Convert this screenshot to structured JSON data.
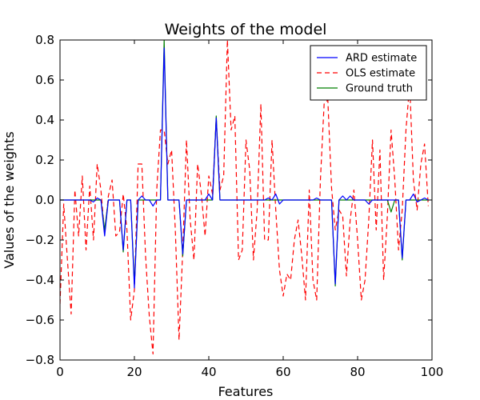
{
  "chart_data": {
    "type": "line",
    "title": "Weights of the model",
    "xlabel": "Features",
    "ylabel": "Values of the weights",
    "xlim": [
      0,
      100
    ],
    "ylim": [
      -0.8,
      0.8
    ],
    "xticks": [
      0,
      20,
      40,
      60,
      80,
      100
    ],
    "xtick_labels": [
      "0",
      "20",
      "40",
      "60",
      "80",
      "100"
    ],
    "yticks": [
      -0.8,
      -0.6,
      -0.4,
      -0.2,
      0.0,
      0.2,
      0.4,
      0.6,
      0.8
    ],
    "ytick_labels": [
      "−0.8",
      "−0.6",
      "−0.4",
      "−0.2",
      "0.0",
      "0.2",
      "0.4",
      "0.6",
      "0.8"
    ],
    "grid": false,
    "legend_position": "top-right",
    "series": [
      {
        "name": "ARD estimate",
        "color": "#0000ff",
        "style": "solid",
        "x": [
          0,
          1,
          2,
          3,
          4,
          5,
          6,
          7,
          8,
          9,
          10,
          11,
          12,
          13,
          14,
          15,
          16,
          17,
          18,
          19,
          20,
          21,
          22,
          23,
          24,
          25,
          26,
          27,
          28,
          29,
          30,
          31,
          32,
          33,
          34,
          35,
          36,
          37,
          38,
          39,
          40,
          41,
          42,
          43,
          44,
          45,
          46,
          47,
          48,
          49,
          50,
          51,
          52,
          53,
          54,
          55,
          56,
          57,
          58,
          59,
          60,
          61,
          62,
          63,
          64,
          65,
          66,
          67,
          68,
          69,
          70,
          71,
          72,
          73,
          74,
          75,
          76,
          77,
          78,
          79,
          80,
          81,
          82,
          83,
          84,
          85,
          86,
          87,
          88,
          89,
          90,
          91,
          92,
          93,
          94,
          95,
          96,
          97,
          98,
          99
        ],
        "y": [
          0,
          0,
          0,
          0,
          0,
          0,
          0,
          0,
          0,
          -0.01,
          0.01,
          0,
          -0.18,
          0,
          0,
          0,
          0,
          -0.25,
          0,
          0,
          -0.44,
          0,
          0.02,
          0,
          0,
          -0.03,
          0,
          0,
          0.76,
          0,
          0,
          0,
          0,
          -0.27,
          0,
          0,
          0,
          0,
          0,
          0,
          0.03,
          0,
          0.41,
          0,
          0,
          0,
          0,
          0,
          0,
          0,
          0,
          0,
          0,
          0,
          0,
          0,
          0.01,
          0,
          0.03,
          -0.02,
          0,
          0,
          0,
          0,
          0,
          0,
          0,
          0,
          0,
          0.01,
          0,
          0,
          0,
          0,
          -0.42,
          0,
          0.02,
          0,
          0.02,
          0,
          0,
          0,
          0,
          -0.02,
          0,
          0,
          0,
          0,
          0,
          0,
          0,
          0,
          -0.29,
          0,
          0,
          0.03,
          -0.01,
          0,
          0.01,
          0
        ]
      },
      {
        "name": "OLS estimate",
        "color": "#ff0000",
        "style": "dashed",
        "x": [
          0,
          1,
          2,
          3,
          4,
          5,
          6,
          7,
          8,
          9,
          10,
          11,
          12,
          13,
          14,
          15,
          16,
          17,
          18,
          19,
          20,
          21,
          22,
          23,
          24,
          25,
          26,
          27,
          28,
          29,
          30,
          31,
          32,
          33,
          34,
          35,
          36,
          37,
          38,
          39,
          40,
          41,
          42,
          43,
          44,
          45,
          46,
          47,
          48,
          49,
          50,
          51,
          52,
          53,
          54,
          55,
          56,
          57,
          58,
          59,
          60,
          61,
          62,
          63,
          64,
          65,
          66,
          67,
          68,
          69,
          70,
          71,
          72,
          73,
          74,
          75,
          76,
          77,
          78,
          79,
          80,
          81,
          82,
          83,
          84,
          85,
          86,
          87,
          88,
          89,
          90,
          91,
          92,
          93,
          94,
          95,
          96,
          97,
          98,
          99
        ],
        "y": [
          -0.52,
          -0.02,
          -0.3,
          -0.57,
          0.05,
          -0.18,
          0.12,
          -0.25,
          0.07,
          -0.2,
          0.18,
          0.05,
          -0.17,
          0.02,
          0.1,
          -0.18,
          -0.16,
          0.03,
          -0.15,
          -0.6,
          -0.45,
          0.18,
          0.18,
          -0.28,
          -0.58,
          -0.77,
          0.05,
          0.35,
          0.35,
          0.18,
          0.25,
          -0.15,
          -0.7,
          -0.25,
          0.3,
          -0.1,
          -0.3,
          0.18,
          0.03,
          -0.18,
          0.12,
          0.03,
          0.41,
          0.05,
          0.12,
          0.8,
          0.35,
          0.42,
          -0.3,
          -0.25,
          0.3,
          0.15,
          -0.3,
          -0.05,
          0.48,
          -0.2,
          -0.2,
          0.3,
          -0.05,
          -0.35,
          -0.48,
          -0.37,
          -0.4,
          -0.2,
          -0.1,
          -0.28,
          -0.5,
          0.05,
          -0.4,
          -0.5,
          0.1,
          0.48,
          0.5,
          0.06,
          -0.15,
          -0.05,
          -0.08,
          -0.38,
          -0.1,
          0.05,
          -0.2,
          -0.5,
          -0.4,
          -0.1,
          0.3,
          -0.15,
          0.25,
          -0.4,
          -0.08,
          0.35,
          0.1,
          -0.25,
          -0.05,
          0.35,
          0.58,
          0.1,
          -0.05,
          0.18,
          0.28,
          -0.03
        ]
      },
      {
        "name": "Ground truth",
        "color": "#008000",
        "style": "solid",
        "x": [
          0,
          1,
          2,
          3,
          4,
          5,
          6,
          7,
          8,
          9,
          10,
          11,
          12,
          13,
          14,
          15,
          16,
          17,
          18,
          19,
          20,
          21,
          22,
          23,
          24,
          25,
          26,
          27,
          28,
          29,
          30,
          31,
          32,
          33,
          34,
          35,
          36,
          37,
          38,
          39,
          40,
          41,
          42,
          43,
          44,
          45,
          46,
          47,
          48,
          49,
          50,
          51,
          52,
          53,
          54,
          55,
          56,
          57,
          58,
          59,
          60,
          61,
          62,
          63,
          64,
          65,
          66,
          67,
          68,
          69,
          70,
          71,
          72,
          73,
          74,
          75,
          76,
          77,
          78,
          79,
          80,
          81,
          82,
          83,
          84,
          85,
          86,
          87,
          88,
          89,
          90,
          91,
          92,
          93,
          94,
          95,
          96,
          97,
          98,
          99
        ],
        "y": [
          0,
          0,
          0,
          0,
          0,
          0,
          0,
          0,
          0,
          0,
          0,
          0,
          -0.15,
          0,
          0,
          0,
          0,
          -0.26,
          0,
          0,
          -0.42,
          0,
          0,
          0,
          0,
          0,
          0,
          0,
          0.8,
          0,
          0,
          0,
          0,
          -0.28,
          0,
          0,
          0,
          0,
          0,
          0,
          0,
          0,
          0.42,
          0,
          0,
          0,
          0,
          0,
          0,
          0,
          0,
          0,
          0,
          0,
          0,
          0,
          0,
          0,
          0,
          0,
          0,
          0,
          0,
          0,
          0,
          0,
          0,
          0,
          0,
          0,
          0,
          0,
          0,
          0,
          -0.43,
          0,
          0,
          0,
          0,
          0,
          0,
          0,
          0,
          0,
          0,
          0,
          0,
          0,
          0,
          -0.06,
          0,
          0,
          -0.3,
          0,
          0,
          0,
          0,
          0,
          0,
          0
        ]
      }
    ]
  }
}
